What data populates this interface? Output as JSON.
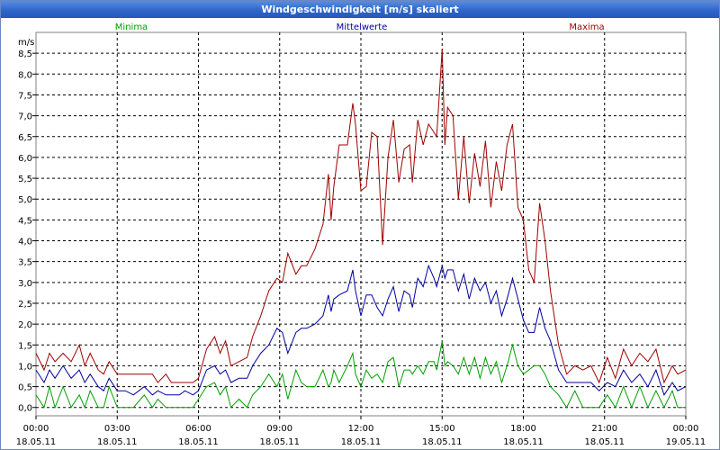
{
  "window": {
    "title": "Windgeschwindigkeit [m/s] skaliert"
  },
  "chart_data": {
    "type": "line",
    "title": "Windgeschwindigkeit [m/s] skaliert",
    "ylabel": "m/s",
    "xlabel": "",
    "ylim": [
      -0.2,
      9.0
    ],
    "xlim": [
      0,
      24
    ],
    "grid": true,
    "yticks": [
      0,
      0.5,
      1,
      1.5,
      2,
      2.5,
      3,
      3.5,
      4,
      4.5,
      5,
      5.5,
      6,
      6.5,
      7,
      7.5,
      8,
      8.5
    ],
    "ytick_labels": [
      "0,0",
      "0,5",
      "1,0",
      "1,5",
      "2,0",
      "2,5",
      "3,0",
      "3,5",
      "4,0",
      "4,5",
      "5,0",
      "5,5",
      "6,0",
      "6,5",
      "7,0",
      "7,5",
      "8,0",
      "8,5"
    ],
    "xticks": [
      0,
      3,
      6,
      9,
      12,
      15,
      18,
      21,
      24
    ],
    "xtick_labels": [
      [
        "00:00",
        "18.05.11"
      ],
      [
        "03:00",
        "18.05.11"
      ],
      [
        "06:00",
        "18.05.11"
      ],
      [
        "09:00",
        "18.05.11"
      ],
      [
        "12:00",
        "18.05.11"
      ],
      [
        "15:00",
        "18.05.11"
      ],
      [
        "18:00",
        "18.05.11"
      ],
      [
        "21:00",
        "18.05.11"
      ],
      [
        "00:00",
        "19.05.11"
      ]
    ],
    "series": [
      {
        "name": "Maxima",
        "color": "#a00000",
        "x": [
          0,
          0.3,
          0.5,
          0.7,
          1.0,
          1.3,
          1.6,
          1.8,
          2.0,
          2.3,
          2.5,
          2.7,
          3.0,
          3.3,
          3.6,
          4.0,
          4.3,
          4.5,
          4.8,
          5.0,
          5.3,
          5.5,
          5.8,
          6.0,
          6.3,
          6.6,
          6.8,
          7.0,
          7.2,
          7.5,
          7.8,
          8.0,
          8.3,
          8.6,
          8.9,
          9.1,
          9.3,
          9.6,
          9.8,
          10.0,
          10.3,
          10.6,
          10.8,
          10.9,
          11.0,
          11.2,
          11.5,
          11.7,
          11.8,
          12.0,
          12.2,
          12.4,
          12.6,
          12.8,
          13.0,
          13.2,
          13.4,
          13.6,
          13.8,
          13.9,
          14.1,
          14.3,
          14.5,
          14.7,
          14.8,
          15.0,
          15.1,
          15.2,
          15.4,
          15.6,
          15.8,
          16.0,
          16.2,
          16.4,
          16.6,
          16.8,
          17.0,
          17.2,
          17.4,
          17.6,
          17.8,
          18.0,
          18.2,
          18.4,
          18.6,
          18.8,
          19.0,
          19.3,
          19.6,
          19.9,
          20.2,
          20.5,
          20.8,
          21.1,
          21.4,
          21.7,
          22.0,
          22.3,
          22.6,
          22.9,
          23.2,
          23.5,
          23.7,
          24.0
        ],
        "y": [
          1.3,
          0.9,
          1.3,
          1.1,
          1.3,
          1.1,
          1.5,
          1.0,
          1.3,
          0.9,
          0.8,
          1.1,
          0.8,
          0.8,
          0.8,
          0.8,
          0.8,
          0.6,
          0.8,
          0.6,
          0.6,
          0.6,
          0.6,
          0.7,
          1.4,
          1.7,
          1.3,
          1.6,
          1.0,
          1.1,
          1.2,
          1.7,
          2.2,
          2.8,
          3.1,
          3.0,
          3.7,
          3.2,
          3.4,
          3.4,
          3.8,
          4.4,
          5.6,
          4.5,
          5.3,
          6.3,
          6.3,
          7.3,
          6.8,
          5.2,
          5.3,
          6.6,
          6.5,
          3.9,
          6.0,
          6.9,
          5.4,
          6.2,
          6.3,
          5.4,
          6.9,
          6.3,
          6.8,
          6.6,
          6.5,
          8.6,
          6.3,
          7.2,
          7.0,
          5.0,
          6.5,
          4.9,
          6.1,
          5.3,
          6.4,
          4.8,
          5.9,
          5.2,
          6.3,
          6.8,
          4.8,
          4.5,
          3.3,
          3.0,
          4.9,
          4.0,
          2.8,
          1.5,
          0.8,
          1.0,
          0.9,
          1.0,
          0.6,
          1.2,
          0.7,
          1.4,
          1.0,
          1.3,
          1.1,
          1.4,
          0.6,
          1.0,
          0.8,
          0.9
        ]
      },
      {
        "name": "Mittelwerte",
        "color": "#0000a0",
        "x": [
          0,
          0.3,
          0.5,
          0.7,
          1.0,
          1.3,
          1.6,
          1.8,
          2.0,
          2.3,
          2.5,
          2.7,
          3.0,
          3.3,
          3.6,
          4.0,
          4.3,
          4.5,
          4.8,
          5.0,
          5.3,
          5.5,
          5.8,
          6.0,
          6.3,
          6.6,
          6.8,
          7.0,
          7.2,
          7.5,
          7.8,
          8.0,
          8.3,
          8.6,
          8.9,
          9.1,
          9.3,
          9.6,
          9.8,
          10.0,
          10.3,
          10.6,
          10.8,
          10.9,
          11.0,
          11.2,
          11.5,
          11.7,
          11.8,
          12.0,
          12.2,
          12.4,
          12.6,
          12.8,
          13.0,
          13.2,
          13.4,
          13.6,
          13.8,
          13.9,
          14.1,
          14.3,
          14.5,
          14.7,
          14.8,
          15.0,
          15.1,
          15.2,
          15.4,
          15.6,
          15.8,
          16.0,
          16.2,
          16.4,
          16.6,
          16.8,
          17.0,
          17.2,
          17.4,
          17.6,
          17.8,
          18.0,
          18.2,
          18.4,
          18.6,
          18.8,
          19.0,
          19.3,
          19.6,
          19.9,
          20.2,
          20.5,
          20.8,
          21.1,
          21.4,
          21.7,
          22.0,
          22.3,
          22.6,
          22.9,
          23.2,
          23.5,
          23.7,
          24.0
        ],
        "y": [
          0.9,
          0.6,
          0.9,
          0.7,
          1.0,
          0.7,
          0.9,
          0.6,
          0.8,
          0.5,
          0.4,
          0.7,
          0.4,
          0.4,
          0.3,
          0.5,
          0.3,
          0.4,
          0.3,
          0.3,
          0.3,
          0.4,
          0.3,
          0.4,
          0.9,
          1.0,
          0.8,
          0.9,
          0.6,
          0.7,
          0.7,
          1.0,
          1.3,
          1.5,
          1.9,
          1.8,
          1.3,
          1.8,
          1.9,
          1.9,
          2.0,
          2.2,
          2.7,
          2.3,
          2.6,
          2.7,
          2.8,
          3.3,
          2.8,
          2.2,
          2.7,
          2.7,
          2.4,
          2.2,
          2.6,
          2.9,
          2.3,
          2.8,
          2.7,
          2.4,
          3.1,
          2.9,
          3.4,
          3.1,
          2.9,
          3.4,
          3.1,
          3.3,
          3.3,
          2.8,
          3.2,
          2.6,
          3.1,
          2.8,
          3.0,
          2.5,
          2.8,
          2.2,
          2.6,
          3.1,
          2.6,
          2.1,
          1.8,
          1.8,
          2.4,
          1.9,
          1.6,
          0.9,
          0.6,
          0.6,
          0.6,
          0.6,
          0.4,
          0.6,
          0.5,
          0.9,
          0.6,
          0.8,
          0.5,
          0.9,
          0.3,
          0.6,
          0.4,
          0.5
        ]
      },
      {
        "name": "Minima",
        "color": "#00a000",
        "x": [
          0,
          0.3,
          0.5,
          0.7,
          1.0,
          1.3,
          1.6,
          1.8,
          2.0,
          2.3,
          2.5,
          2.7,
          3.0,
          3.3,
          3.6,
          4.0,
          4.3,
          4.5,
          4.8,
          5.0,
          5.3,
          5.5,
          5.8,
          6.0,
          6.3,
          6.6,
          6.8,
          7.0,
          7.2,
          7.5,
          7.8,
          8.0,
          8.3,
          8.6,
          8.9,
          9.1,
          9.3,
          9.6,
          9.8,
          10.0,
          10.3,
          10.6,
          10.8,
          10.9,
          11.0,
          11.2,
          11.5,
          11.7,
          11.8,
          12.0,
          12.2,
          12.4,
          12.6,
          12.8,
          13.0,
          13.2,
          13.4,
          13.6,
          13.8,
          13.9,
          14.1,
          14.3,
          14.5,
          14.7,
          14.8,
          15.0,
          15.1,
          15.2,
          15.4,
          15.6,
          15.8,
          16.0,
          16.2,
          16.4,
          16.6,
          16.8,
          17.0,
          17.2,
          17.4,
          17.6,
          17.8,
          18.0,
          18.2,
          18.4,
          18.6,
          18.8,
          19.0,
          19.3,
          19.6,
          19.9,
          20.2,
          20.5,
          20.8,
          21.1,
          21.4,
          21.7,
          22.0,
          22.3,
          22.6,
          22.9,
          23.2,
          23.5,
          23.7,
          24.0
        ],
        "y": [
          0.3,
          0.0,
          0.5,
          0.0,
          0.5,
          0.0,
          0.3,
          0.0,
          0.4,
          0.0,
          0.0,
          0.5,
          0.0,
          0.0,
          0.0,
          0.3,
          0.0,
          0.2,
          0.0,
          0.0,
          0.0,
          0.0,
          0.0,
          0.2,
          0.5,
          0.6,
          0.3,
          0.5,
          0.0,
          0.2,
          0.0,
          0.3,
          0.5,
          0.8,
          0.5,
          0.8,
          0.2,
          0.9,
          0.6,
          0.5,
          0.5,
          0.9,
          0.5,
          0.6,
          0.9,
          0.6,
          1.0,
          1.3,
          0.8,
          0.5,
          0.9,
          0.7,
          0.8,
          0.6,
          1.1,
          1.2,
          0.5,
          0.9,
          0.9,
          0.8,
          1.0,
          0.8,
          1.1,
          1.1,
          0.9,
          1.6,
          1.0,
          1.1,
          1.0,
          0.8,
          1.2,
          0.8,
          1.2,
          0.7,
          1.2,
          0.8,
          1.1,
          0.6,
          1.0,
          1.5,
          1.0,
          0.8,
          0.9,
          1.0,
          1.0,
          0.8,
          0.5,
          0.3,
          0.0,
          0.4,
          0.0,
          0.0,
          0.0,
          0.3,
          0.0,
          0.5,
          0.0,
          0.5,
          0.0,
          0.4,
          0.0,
          0.4,
          0.0,
          0.0
        ]
      }
    ]
  }
}
